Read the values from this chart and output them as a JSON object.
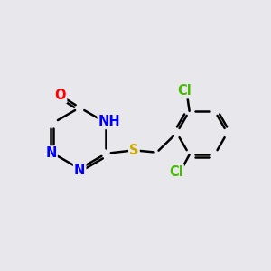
{
  "background_color": "#e8e8ec",
  "atom_colors": {
    "C": "#000000",
    "N": "#0000ff",
    "O": "#ff0000",
    "S": "#ccaa00",
    "Cl": "#44bb00",
    "H": "#888888"
  },
  "bond_color": "#000000",
  "bond_width": 1.8,
  "font_size_atoms": 10.5
}
